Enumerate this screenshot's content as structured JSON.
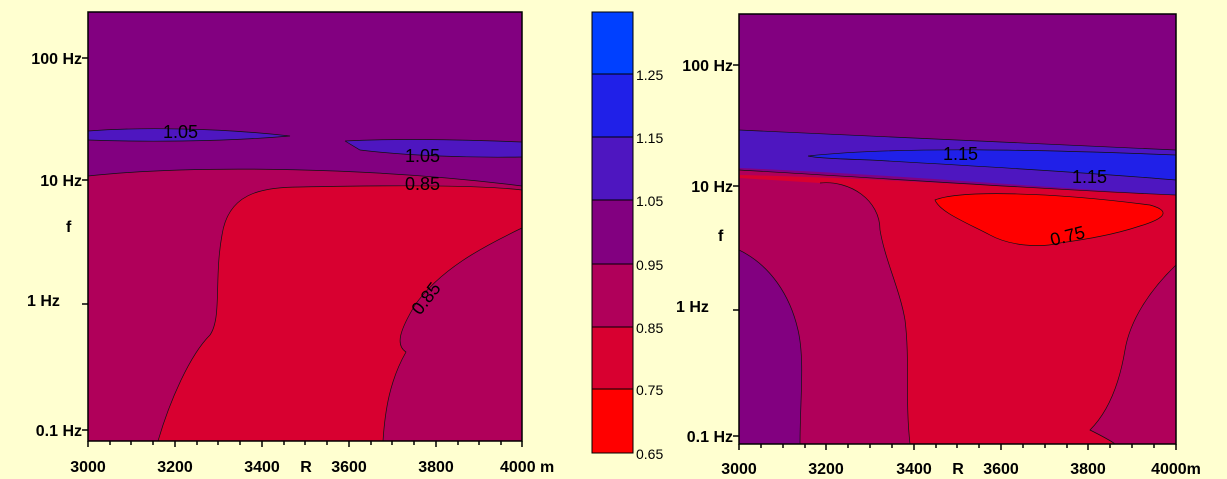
{
  "colors": {
    "background": "#ffffd0",
    "levels": {
      "0.65-0.75": "#ff0000",
      "0.75-0.85": "#d80030",
      "0.85-0.95": "#b0005a",
      "0.95-1.05": "#820080",
      "1.05-1.15": "#4e16c0",
      "1.15-1.25": "#2020e8",
      "1.25-1.35": "#0040ff"
    }
  },
  "chart_data": [
    {
      "type": "contour",
      "panel": "left",
      "xlabel": "R",
      "ylabel": "f",
      "x_ticks": [
        "3000",
        "3200",
        "3400",
        "3600",
        "3800",
        "4000 m"
      ],
      "x_tick_values": [
        3000,
        3200,
        3400,
        3600,
        3800,
        4000
      ],
      "y_ticks": [
        "0.1 Hz",
        "1 Hz",
        "10 Hz",
        "100 Hz"
      ],
      "y_tick_values": [
        0.1,
        1,
        10,
        100
      ],
      "y_scale": "log",
      "xlim": [
        3000,
        4000
      ],
      "contour_labels": [
        {
          "text": "1.05",
          "R": 3220,
          "f": 22
        },
        {
          "text": "1.05",
          "R": 3780,
          "f": 14
        },
        {
          "text": "0.85",
          "R": 3770,
          "f": 9.5
        },
        {
          "text": "0.85",
          "R": 3790,
          "f": 1.2
        }
      ],
      "regions": [
        {
          "level": "0.95-1.05",
          "description": "upper band above ~14 Hz"
        },
        {
          "level": "1.05-1.15",
          "description": "thin band near 20 Hz"
        },
        {
          "level": "0.85-0.95",
          "description": "below ~10 Hz at the sides"
        },
        {
          "level": "0.75-0.85",
          "description": "central region from R≈3200 to R≈3800, below ~9 Hz"
        }
      ]
    },
    {
      "type": "colorbar",
      "ticks": [
        "0.65",
        "0.75",
        "0.85",
        "0.95",
        "1.05",
        "1.15",
        "1.25"
      ],
      "tick_values": [
        0.65,
        0.75,
        0.85,
        0.95,
        1.05,
        1.15,
        1.25
      ],
      "range": [
        0.65,
        1.35
      ]
    },
    {
      "type": "contour",
      "panel": "right",
      "xlabel": "R",
      "ylabel": "f",
      "x_ticks": [
        "3000",
        "3200",
        "3400",
        "3600",
        "3800",
        "4000m"
      ],
      "x_tick_values": [
        3000,
        3200,
        3400,
        3600,
        3800,
        4000
      ],
      "y_ticks": [
        "0.1 Hz",
        "1 Hz",
        "10 Hz",
        "100 Hz"
      ],
      "y_tick_values": [
        0.1,
        1,
        10,
        100
      ],
      "y_scale": "log",
      "xlim": [
        3000,
        4000
      ],
      "contour_labels": [
        {
          "text": "1.15",
          "R": 3500,
          "f": 15
        },
        {
          "text": "1.15",
          "R": 3840,
          "f": 11
        },
        {
          "text": "0.75",
          "R": 3700,
          "f": 4.5
        }
      ],
      "regions": [
        {
          "level": "0.95-1.05",
          "description": "upper band above ~25 Hz"
        },
        {
          "level": "1.05-1.15",
          "description": "band ~11 to 25 Hz"
        },
        {
          "level": "1.15-1.25",
          "description": "core band ~11 to 15 Hz, R≥3200"
        },
        {
          "level": "0.75-0.85",
          "description": "central region R≈3150-3800 below ~10 Hz"
        },
        {
          "level": "0.65-0.75",
          "description": "patch R≈3450-3960, f≈4-7 Hz"
        },
        {
          "level": "0.85-0.95",
          "description": "left and right side strips"
        }
      ]
    }
  ]
}
